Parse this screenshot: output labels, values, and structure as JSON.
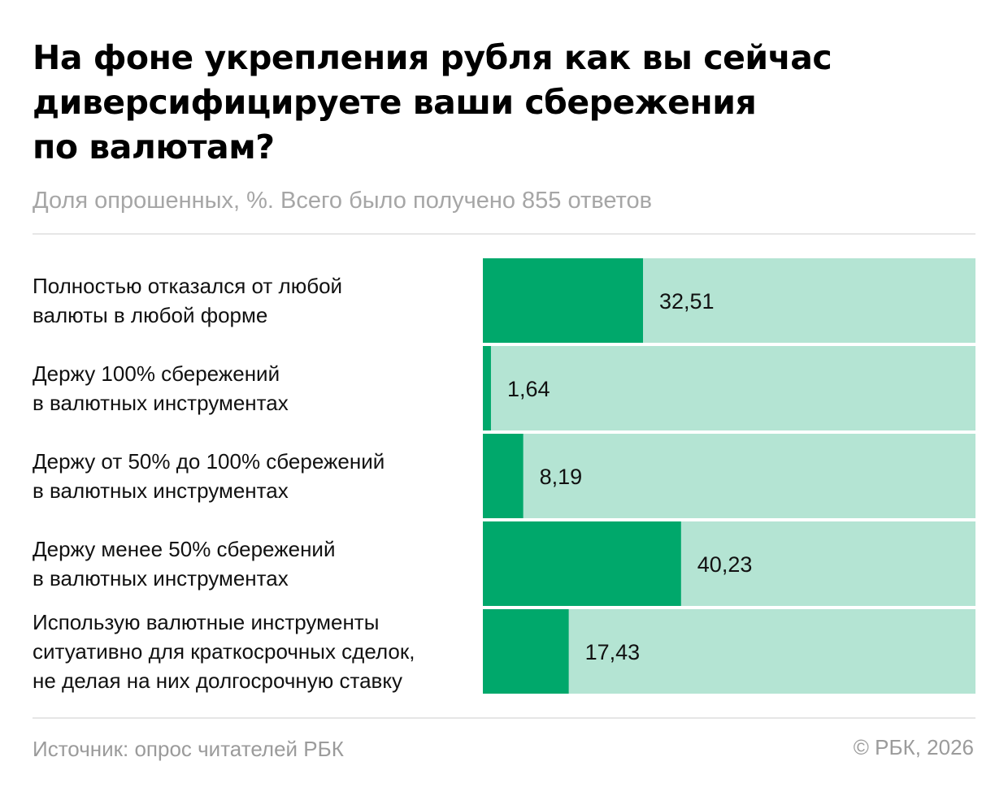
{
  "header": {
    "title_lines": [
      "На фоне укрепления рубля как вы сейчас",
      "диверсифицируете ваши сбережения",
      "по валютам?"
    ],
    "subtitle": "Доля опрошенных, %. Всего было получено 855 ответов"
  },
  "footer": {
    "source": "Источник: опрос читателей РБК",
    "copyright": "© РБК, 2026"
  },
  "colors": {
    "bar_fill": "#00a86b",
    "bar_track": "#b4e4d3",
    "value_text": "#111111"
  },
  "chart_data": {
    "type": "bar",
    "orientation": "horizontal",
    "title": "На фоне укрепления рубля как вы сейчас диверсифицируете ваши сбережения по валютам?",
    "subtitle": "Доля опрошенных, %. Всего было получено 855 ответов",
    "xlim": [
      0,
      100
    ],
    "grid": false,
    "categories": [
      [
        "Полностью отказался от любой",
        "валюты в любой форме"
      ],
      [
        "Держу 100% сбережений",
        "в валютных инструментах"
      ],
      [
        "Держу от 50% до 100% сбережений",
        "в валютных инструментах"
      ],
      [
        "Держу менее 50% сбережений",
        "в валютных инструментах"
      ],
      [
        "Использую валютные инструменты",
        "ситуативно для краткосрочных сделок,",
        "не делая на них долгосрочную ставку"
      ]
    ],
    "values": [
      32.51,
      1.64,
      8.19,
      40.23,
      17.43
    ],
    "value_labels": [
      "32,51",
      "1,64",
      "8,19",
      "40,23",
      "17,43"
    ]
  }
}
